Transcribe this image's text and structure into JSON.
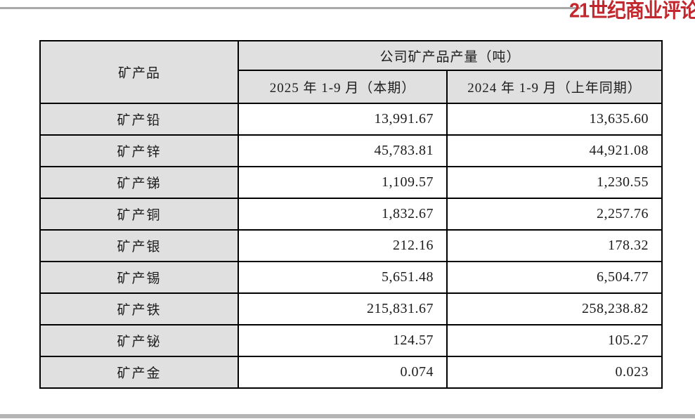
{
  "masthead": {
    "logo_text": "21世纪商业评论"
  },
  "colors": {
    "logo_red": "#c1272d",
    "cell_gray": "#e0e0e0",
    "top_rule_gray": "#a9a9a9",
    "bottom_bar_gray": "#b5b5b5",
    "table_border": "#000000"
  },
  "table": {
    "col_product_header": "矿产品",
    "group_header": "公司矿产品产量（吨）",
    "col_current_header": "2025 年 1-9 月（本期）",
    "col_prior_header": "2024 年 1-9 月（上年同期）",
    "rows": [
      {
        "label": "矿产铅",
        "current": "13,991.67",
        "prior": "13,635.60"
      },
      {
        "label": "矿产锌",
        "current": "45,783.81",
        "prior": "44,921.08"
      },
      {
        "label": "矿产锑",
        "current": "1,109.57",
        "prior": "1,230.55"
      },
      {
        "label": "矿产铜",
        "current": "1,832.67",
        "prior": "2,257.76"
      },
      {
        "label": "矿产银",
        "current": "212.16",
        "prior": "178.32"
      },
      {
        "label": "矿产锡",
        "current": "5,651.48",
        "prior": "6,504.77"
      },
      {
        "label": "矿产铁",
        "current": "215,831.67",
        "prior": "258,238.82"
      },
      {
        "label": "矿产铋",
        "current": "124.57",
        "prior": "105.27"
      },
      {
        "label": "矿产金",
        "current": "0.074",
        "prior": "0.023"
      }
    ]
  },
  "chart_data": {
    "type": "table",
    "title": "公司矿产品产量（吨）",
    "columns": [
      "矿产品",
      "2025年1-9月（本期）",
      "2024年1-9月（上年同期）"
    ],
    "rows": [
      {
        "product": "矿产铅",
        "current_2025": 13991.67,
        "prior_2024": 13635.6
      },
      {
        "product": "矿产锌",
        "current_2025": 45783.81,
        "prior_2024": 44921.08
      },
      {
        "product": "矿产锑",
        "current_2025": 1109.57,
        "prior_2024": 1230.55
      },
      {
        "product": "矿产铜",
        "current_2025": 1832.67,
        "prior_2024": 2257.76
      },
      {
        "product": "矿产银",
        "current_2025": 212.16,
        "prior_2024": 178.32
      },
      {
        "product": "矿产锡",
        "current_2025": 5651.48,
        "prior_2024": 6504.77
      },
      {
        "product": "矿产铁",
        "current_2025": 215831.67,
        "prior_2024": 258238.82
      },
      {
        "product": "矿产铋",
        "current_2025": 124.57,
        "prior_2024": 105.27
      },
      {
        "product": "矿产金",
        "current_2025": 0.074,
        "prior_2024": 0.023
      }
    ]
  }
}
